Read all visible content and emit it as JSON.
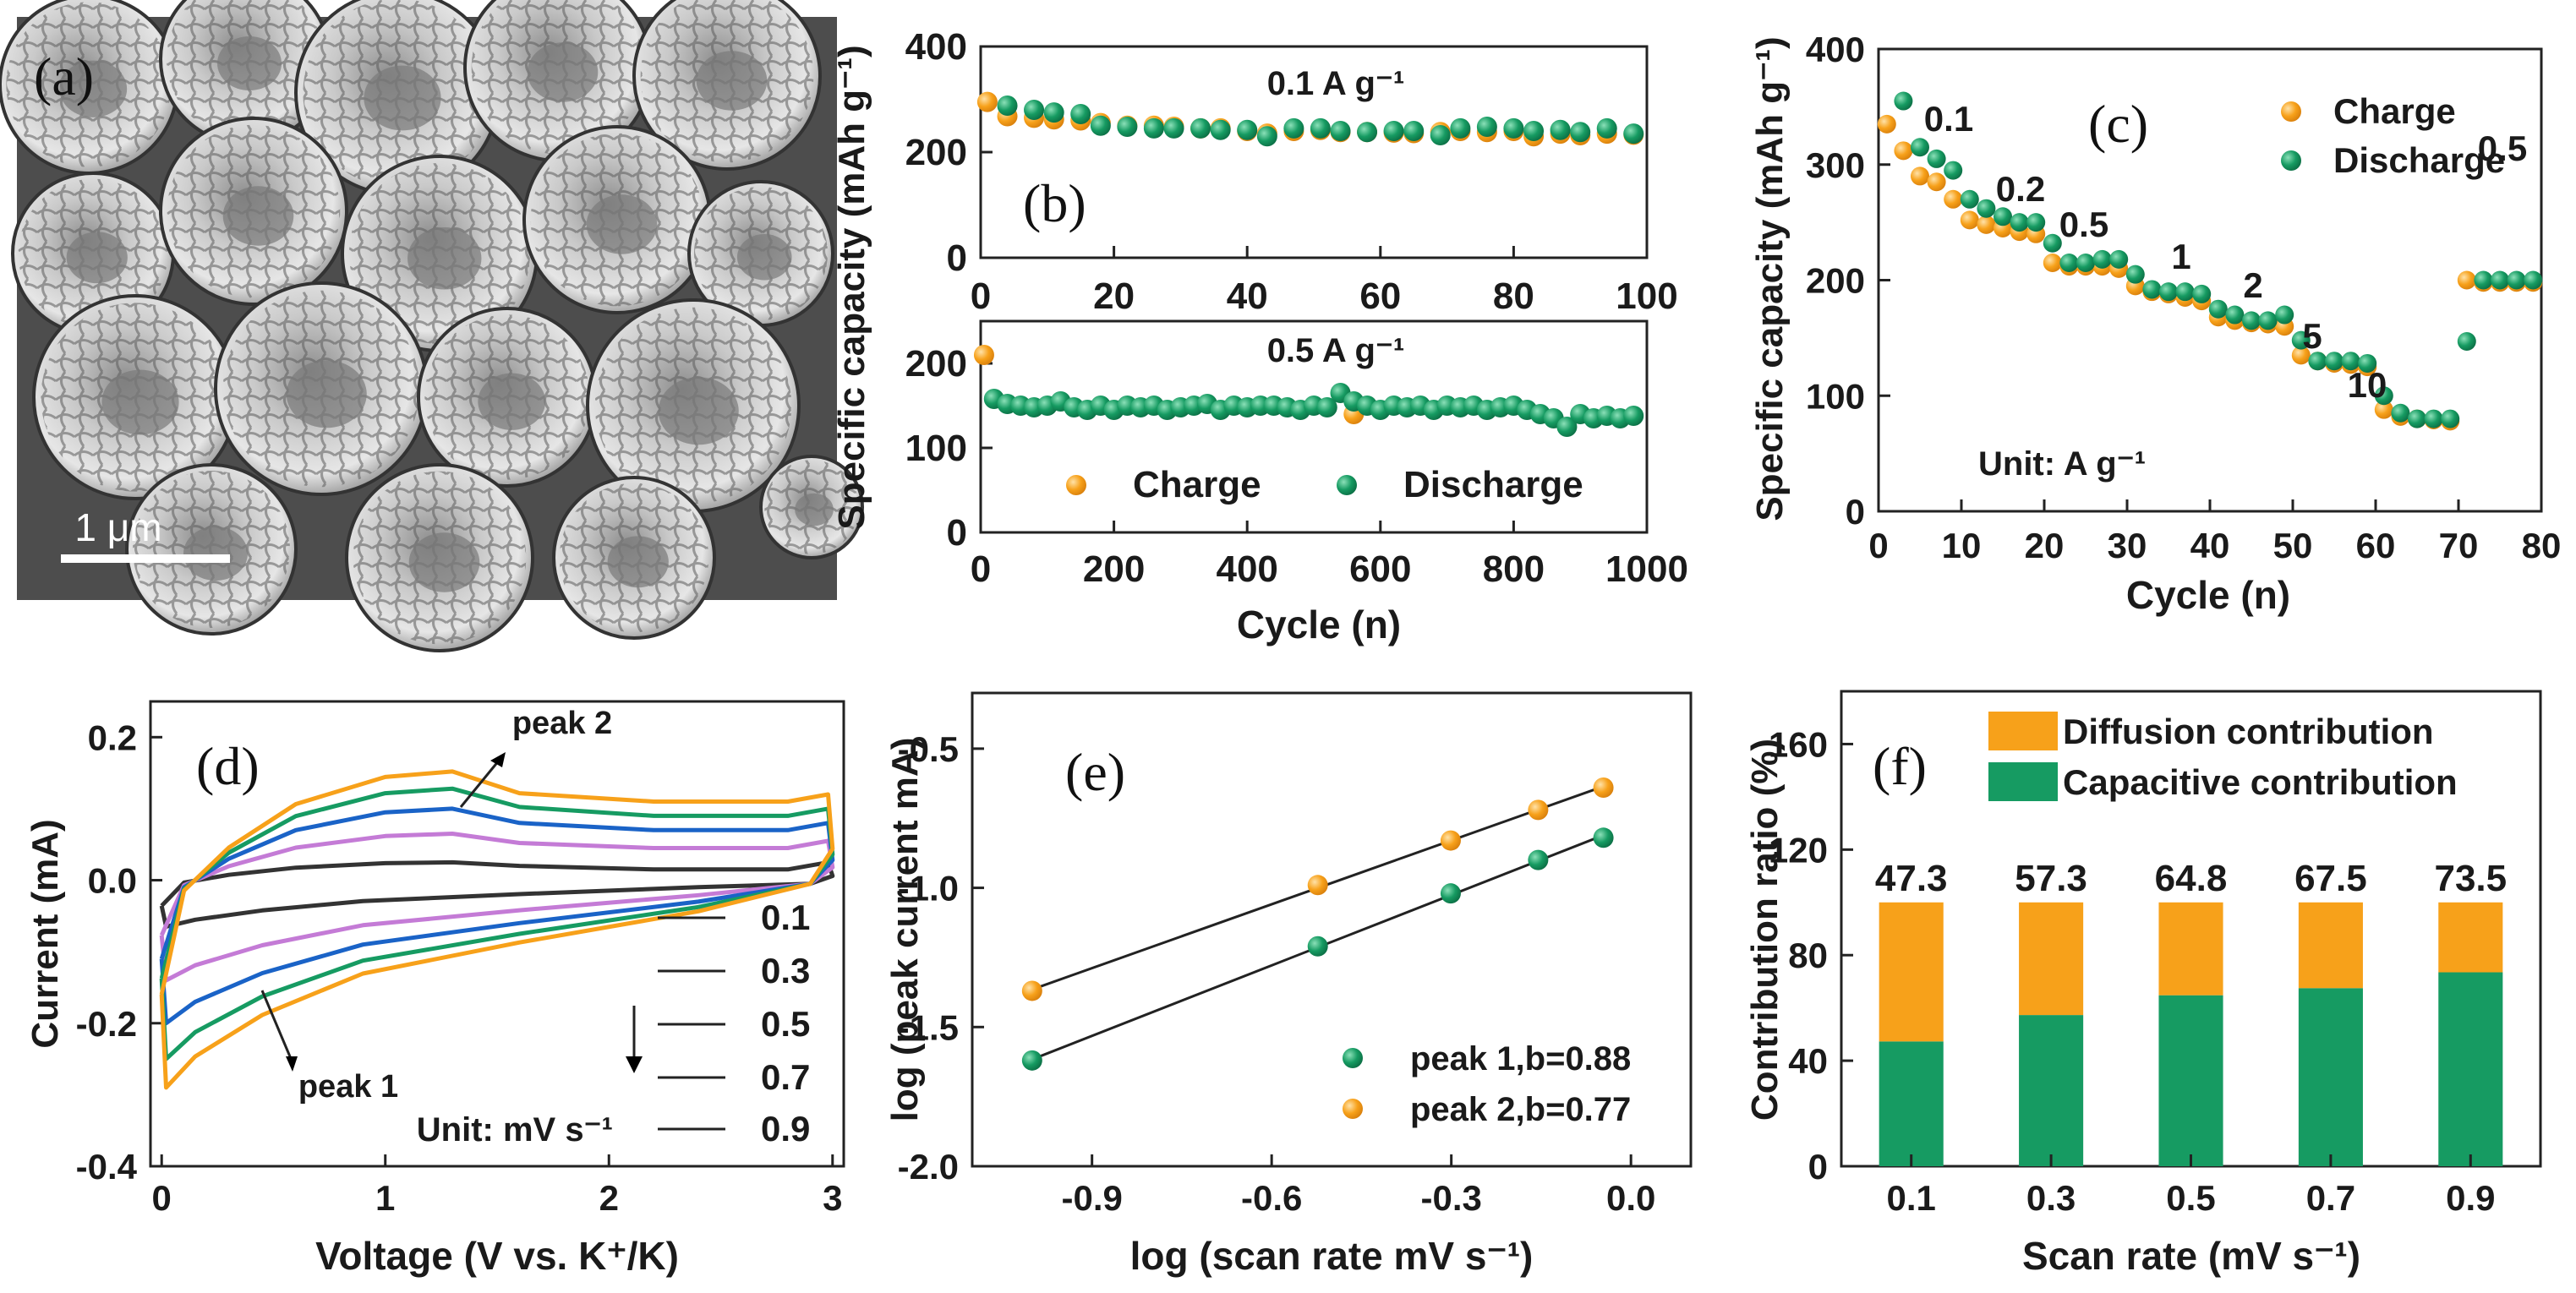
{
  "figure": {
    "panel_labels": [
      "(a)",
      "(b)",
      "(c)",
      "(d)",
      "(e)",
      "(f)"
    ]
  },
  "colors": {
    "charge": "#f7a11a",
    "discharge": "#169b62"
  },
  "chart_data": [
    {
      "id": "a",
      "type": "image",
      "description_label": "(a)",
      "scale_bar": "1 μm"
    },
    {
      "id": "b_top",
      "type": "scatter",
      "title": "0.1 A g⁻¹",
      "ylabel": "Specific capacity (mAh g⁻¹)",
      "xlim": [
        0,
        100
      ],
      "ylim": [
        0,
        400
      ],
      "xticks": [
        0,
        20,
        40,
        60,
        80,
        100
      ],
      "yticks": [
        0,
        200,
        400
      ],
      "series": [
        {
          "name": "Charge",
          "color": "#f7a11a",
          "x": [
            1,
            4,
            8,
            11,
            15,
            18,
            22,
            26,
            29,
            33,
            36,
            40,
            43,
            47,
            51,
            54,
            58,
            62,
            65,
            69,
            72,
            76,
            80,
            83,
            87,
            90,
            94,
            98
          ],
          "y": [
            295,
            268,
            265,
            262,
            260,
            255,
            250,
            250,
            248,
            245,
            245,
            240,
            235,
            240,
            242,
            238,
            238,
            237,
            236,
            238,
            240,
            238,
            240,
            230,
            235,
            232,
            235,
            233
          ]
        },
        {
          "name": "Discharge",
          "color": "#169b62",
          "x": [
            4,
            8,
            11,
            15,
            18,
            22,
            26,
            29,
            33,
            36,
            40,
            43,
            47,
            51,
            54,
            58,
            62,
            65,
            69,
            72,
            76,
            80,
            83,
            87,
            90,
            94,
            98
          ],
          "y": [
            288,
            280,
            275,
            272,
            250,
            248,
            245,
            245,
            245,
            242,
            242,
            230,
            245,
            245,
            240,
            238,
            240,
            240,
            232,
            245,
            248,
            245,
            240,
            242,
            238,
            245,
            235
          ]
        }
      ]
    },
    {
      "id": "b_bottom",
      "type": "scatter",
      "title": "0.5 A g⁻¹",
      "xlabel": "Cycle (n)",
      "xlim": [
        0,
        1000
      ],
      "ylim": [
        0,
        250
      ],
      "xticks": [
        0,
        200,
        400,
        600,
        800,
        1000
      ],
      "yticks": [
        0,
        100,
        200
      ],
      "legend": [
        "Charge",
        "Discharge"
      ],
      "series": [
        {
          "name": "Charge",
          "color": "#f7a11a",
          "x": [
            5,
            560
          ],
          "y": [
            210,
            140
          ]
        },
        {
          "name": "Discharge",
          "color": "#169b62",
          "x": [
            20,
            40,
            60,
            80,
            100,
            120,
            140,
            160,
            180,
            200,
            220,
            240,
            260,
            280,
            300,
            320,
            340,
            360,
            380,
            400,
            420,
            440,
            460,
            480,
            500,
            520,
            540,
            560,
            580,
            600,
            620,
            640,
            660,
            680,
            700,
            720,
            740,
            760,
            780,
            800,
            820,
            840,
            860,
            880,
            900,
            920,
            940,
            960,
            980
          ],
          "y": [
            158,
            152,
            150,
            148,
            150,
            155,
            148,
            145,
            150,
            145,
            150,
            148,
            150,
            145,
            148,
            150,
            152,
            145,
            150,
            148,
            150,
            150,
            148,
            145,
            150,
            148,
            165,
            155,
            150,
            145,
            150,
            148,
            150,
            145,
            150,
            148,
            150,
            145,
            148,
            150,
            145,
            140,
            135,
            125,
            140,
            135,
            138,
            135,
            138
          ]
        }
      ]
    },
    {
      "id": "c",
      "type": "scatter",
      "title": "",
      "xlabel": "Cycle (n)",
      "ylabel": "Specific capacity (mAh g⁻¹)",
      "xlim": [
        0,
        80
      ],
      "ylim": [
        0,
        400
      ],
      "xticks": [
        0,
        10,
        20,
        30,
        40,
        50,
        60,
        70,
        80
      ],
      "yticks": [
        0,
        100,
        200,
        300,
        400
      ],
      "legend": [
        "Charge",
        "Discharge"
      ],
      "annotations": [
        "0.1",
        "0.2",
        "0.5",
        "1",
        "2",
        "5",
        "10",
        "0.5",
        "Unit: A g⁻¹"
      ],
      "series": [
        {
          "name": "Charge",
          "color": "#f7a11a",
          "x": [
            1,
            3,
            5,
            7,
            9,
            11,
            13,
            15,
            17,
            19,
            21,
            23,
            25,
            27,
            29,
            31,
            33,
            35,
            37,
            39,
            41,
            43,
            45,
            47,
            49,
            51,
            53,
            55,
            57,
            59,
            61,
            63,
            65,
            67,
            69,
            71,
            73,
            75,
            77,
            79
          ],
          "y": [
            335,
            312,
            290,
            285,
            270,
            252,
            248,
            245,
            242,
            240,
            215,
            212,
            212,
            212,
            210,
            195,
            190,
            188,
            185,
            182,
            168,
            165,
            163,
            162,
            160,
            135,
            130,
            128,
            127,
            125,
            88,
            82,
            80,
            79,
            78,
            200,
            198,
            198,
            198,
            198
          ]
        },
        {
          "name": "Discharge",
          "color": "#169b62",
          "x": [
            3,
            5,
            7,
            9,
            11,
            13,
            15,
            17,
            19,
            21,
            23,
            25,
            27,
            29,
            31,
            33,
            35,
            37,
            39,
            41,
            43,
            45,
            47,
            49,
            51,
            53,
            55,
            57,
            59,
            61,
            63,
            65,
            67,
            69,
            71,
            73,
            75,
            77,
            79
          ],
          "y": [
            355,
            315,
            305,
            295,
            270,
            262,
            255,
            250,
            250,
            232,
            215,
            215,
            218,
            218,
            205,
            192,
            190,
            190,
            188,
            175,
            170,
            165,
            165,
            170,
            148,
            130,
            130,
            130,
            128,
            100,
            85,
            80,
            80,
            80,
            147,
            200,
            200,
            200,
            200
          ]
        }
      ]
    },
    {
      "id": "d",
      "type": "line",
      "title": "",
      "xlabel": "Voltage (V vs. K⁺/K)",
      "ylabel": "Current (mA)",
      "xlim": [
        -0.05,
        3.05
      ],
      "ylim": [
        -0.4,
        0.25
      ],
      "xticks": [
        0,
        1,
        2,
        3
      ],
      "yticks": [
        -0.4,
        -0.2,
        0.0,
        0.2
      ],
      "legend_values": [
        "0.1",
        "0.3",
        "0.5",
        "0.7",
        "0.9"
      ],
      "legend_unit": "Unit: mV s⁻¹",
      "annotations": [
        "peak 1",
        "peak 2"
      ],
      "series": [
        {
          "name": "0.1",
          "color": "#333333",
          "peak": 0.025,
          "low": -0.065,
          "end": 0.015
        },
        {
          "name": "0.3",
          "color": "#c47bd6",
          "peak": 0.065,
          "low": -0.14,
          "end": 0.045
        },
        {
          "name": "0.5",
          "color": "#1a63c7",
          "peak": 0.1,
          "low": -0.2,
          "end": 0.07
        },
        {
          "name": "0.7",
          "color": "#169b62",
          "peak": 0.128,
          "low": -0.25,
          "end": 0.09
        },
        {
          "name": "0.9",
          "color": "#f7a11a",
          "peak": 0.152,
          "low": -0.29,
          "end": 0.11
        }
      ]
    },
    {
      "id": "e",
      "type": "scatter",
      "title": "",
      "xlabel": "log (scan rate mV s⁻¹)",
      "ylabel": "log (peak current mA)",
      "xlim": [
        -1.1,
        0.1
      ],
      "ylim": [
        -2.0,
        -0.3
      ],
      "xticks": [
        -0.9,
        -0.6,
        -0.3,
        0.0
      ],
      "yticks": [
        -2.0,
        -1.5,
        -1.0,
        -0.5
      ],
      "legend": [
        "peak 1,b=0.88",
        "peak 2,b=0.77"
      ],
      "series": [
        {
          "name": "peak 1,b=0.88",
          "color": "#169b62",
          "x": [
            -1.0,
            -0.523,
            -0.301,
            -0.155,
            -0.046
          ],
          "y": [
            -1.62,
            -1.21,
            -1.02,
            -0.9,
            -0.82
          ]
        },
        {
          "name": "peak 2,b=0.77",
          "color": "#f7a11a",
          "x": [
            -1.0,
            -0.523,
            -0.301,
            -0.155,
            -0.046
          ],
          "y": [
            -1.37,
            -0.99,
            -0.83,
            -0.72,
            -0.64
          ]
        }
      ]
    },
    {
      "id": "f",
      "type": "bar",
      "title": "",
      "xlabel": "Scan rate (mV s⁻¹)",
      "ylabel": "Contribution ratio (%)",
      "ylim": [
        0,
        180
      ],
      "yticks": [
        0,
        40,
        80,
        120,
        160
      ],
      "categories": [
        "0.1",
        "0.3",
        "0.5",
        "0.7",
        "0.9"
      ],
      "legend": [
        "Diffusion contribution",
        "Capacitive  contribution"
      ],
      "data_labels": [
        "47.3",
        "57.3",
        "64.8",
        "67.5",
        "73.5"
      ],
      "series": [
        {
          "name": "Capacitive  contribution",
          "color": "#169b62",
          "values": [
            47.3,
            57.3,
            64.8,
            67.5,
            73.5
          ]
        },
        {
          "name": "Diffusion contribution",
          "color": "#f7a11a",
          "values": [
            52.7,
            42.7,
            35.2,
            32.5,
            26.5
          ]
        }
      ]
    }
  ]
}
